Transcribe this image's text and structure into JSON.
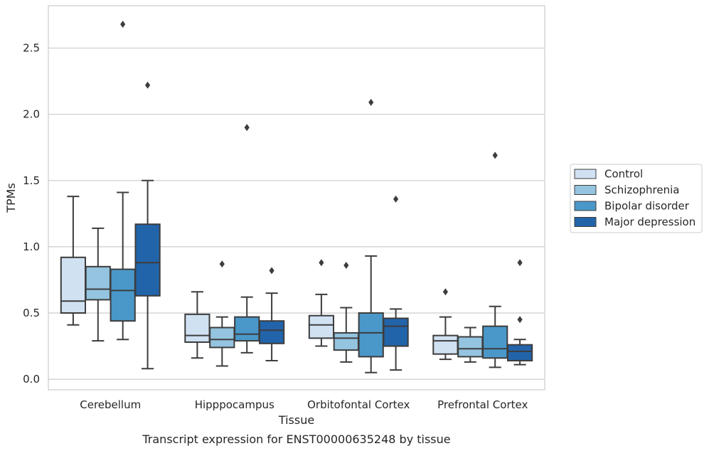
{
  "chart_data": {
    "type": "box",
    "title": "",
    "caption": "Transcript expression for ENST00000635248 by tissue",
    "xlabel": "Tissue",
    "ylabel": "TPMs",
    "ylim": [
      -0.08,
      2.82
    ],
    "yticks": [
      0.0,
      0.5,
      1.0,
      1.5,
      2.0,
      2.5
    ],
    "ytick_labels": [
      "0.0",
      "0.5",
      "1.0",
      "1.5",
      "2.0",
      "2.5"
    ],
    "grid": "horizontal",
    "legend_position": "right",
    "categories": [
      "Cerebellum",
      "Hipppocampus",
      "Orbitofontal Cortex",
      "Prefrontal Cortex"
    ],
    "series": [
      {
        "name": "Control",
        "color": "#d0e1f2",
        "boxes": [
          {
            "whisker_low": 0.41,
            "q1": 0.5,
            "median": 0.59,
            "q3": 0.92,
            "whisker_high": 1.38,
            "outliers": []
          },
          {
            "whisker_low": 0.16,
            "q1": 0.28,
            "median": 0.33,
            "q3": 0.49,
            "whisker_high": 0.66,
            "outliers": []
          },
          {
            "whisker_low": 0.25,
            "q1": 0.31,
            "median": 0.41,
            "q3": 0.48,
            "whisker_high": 0.64,
            "outliers": [
              0.88
            ]
          },
          {
            "whisker_low": 0.15,
            "q1": 0.19,
            "median": 0.29,
            "q3": 0.33,
            "whisker_high": 0.47,
            "outliers": [
              0.66
            ]
          }
        ]
      },
      {
        "name": "Schizophrenia",
        "color": "#94c4df",
        "boxes": [
          {
            "whisker_low": 0.29,
            "q1": 0.6,
            "median": 0.68,
            "q3": 0.85,
            "whisker_high": 1.14,
            "outliers": []
          },
          {
            "whisker_low": 0.1,
            "q1": 0.24,
            "median": 0.3,
            "q3": 0.39,
            "whisker_high": 0.47,
            "outliers": [
              0.87
            ]
          },
          {
            "whisker_low": 0.13,
            "q1": 0.22,
            "median": 0.31,
            "q3": 0.35,
            "whisker_high": 0.54,
            "outliers": [
              0.86
            ]
          },
          {
            "whisker_low": 0.13,
            "q1": 0.17,
            "median": 0.23,
            "q3": 0.32,
            "whisker_high": 0.39,
            "outliers": []
          }
        ]
      },
      {
        "name": "Bipolar disorder",
        "color": "#4a98c9",
        "boxes": [
          {
            "whisker_low": 0.3,
            "q1": 0.44,
            "median": 0.67,
            "q3": 0.83,
            "whisker_high": 1.41,
            "outliers": [
              2.68
            ]
          },
          {
            "whisker_low": 0.2,
            "q1": 0.29,
            "median": 0.34,
            "q3": 0.47,
            "whisker_high": 0.62,
            "outliers": [
              1.9
            ]
          },
          {
            "whisker_low": 0.05,
            "q1": 0.17,
            "median": 0.35,
            "q3": 0.5,
            "whisker_high": 0.93,
            "outliers": [
              2.09
            ]
          },
          {
            "whisker_low": 0.09,
            "q1": 0.16,
            "median": 0.23,
            "q3": 0.4,
            "whisker_high": 0.55,
            "outliers": [
              1.69
            ]
          }
        ]
      },
      {
        "name": "Major depression",
        "color": "#2264aa",
        "boxes": [
          {
            "whisker_low": 0.08,
            "q1": 0.63,
            "median": 0.88,
            "q3": 1.17,
            "whisker_high": 1.5,
            "outliers": [
              2.22
            ]
          },
          {
            "whisker_low": 0.14,
            "q1": 0.27,
            "median": 0.37,
            "q3": 0.44,
            "whisker_high": 0.65,
            "outliers": [
              0.82
            ]
          },
          {
            "whisker_low": 0.07,
            "q1": 0.25,
            "median": 0.4,
            "q3": 0.46,
            "whisker_high": 0.53,
            "outliers": [
              1.36
            ]
          },
          {
            "whisker_low": 0.11,
            "q1": 0.14,
            "median": 0.21,
            "q3": 0.26,
            "whisker_high": 0.3,
            "outliers": [
              0.45,
              0.88
            ]
          }
        ]
      }
    ]
  }
}
